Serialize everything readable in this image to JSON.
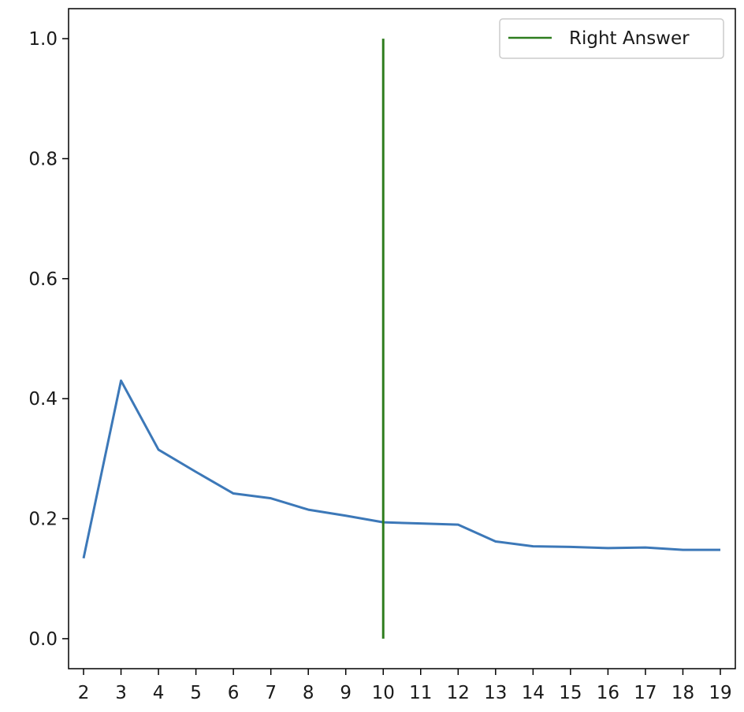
{
  "chart_data": {
    "type": "line",
    "title": "",
    "xlabel": "",
    "ylabel": "",
    "xlim": [
      1.6,
      19.4
    ],
    "ylim": [
      -0.05,
      1.05
    ],
    "x_ticks": [
      2,
      3,
      4,
      5,
      6,
      7,
      8,
      9,
      10,
      11,
      12,
      13,
      14,
      15,
      16,
      17,
      18,
      19
    ],
    "y_ticks": [
      0.0,
      0.2,
      0.4,
      0.6,
      0.8,
      1.0
    ],
    "y_tick_labels": [
      "0.0",
      "0.2",
      "0.4",
      "0.6",
      "0.8",
      "1.0"
    ],
    "grid": false,
    "legend_position": "top-right",
    "series": [
      {
        "color": "#3c78b8",
        "x": [
          2,
          3,
          4,
          5,
          6,
          7,
          8,
          9,
          10,
          11,
          12,
          13,
          14,
          15,
          16,
          17,
          18,
          19
        ],
        "y": [
          0.134,
          0.43,
          0.315,
          0.278,
          0.242,
          0.234,
          0.215,
          0.205,
          0.194,
          0.192,
          0.19,
          0.162,
          0.154,
          0.153,
          0.151,
          0.152,
          0.148,
          0.148
        ]
      }
    ],
    "vertical_lines": [
      {
        "name": "Right Answer",
        "color": "#2e7d1e",
        "x": 10,
        "y_range": [
          0.0,
          1.0
        ]
      }
    ],
    "legend": [
      {
        "label": "Right Answer",
        "color": "#2e7d1e"
      }
    ]
  }
}
